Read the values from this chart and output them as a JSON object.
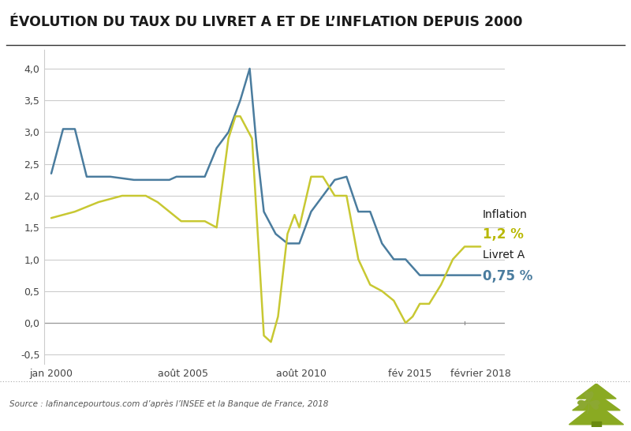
{
  "title": "ÉVOLUTION DU TAUX DU LIVRET A ET DE L’INFLATION DEPUIS 2000",
  "source_text": "Source : lafinancepourtous.com d’après l’INSEE et la Banque de France, 2018",
  "livret_a": {
    "x": [
      2000.0,
      2000.5,
      2001.0,
      2001.5,
      2002.5,
      2003.5,
      2004.5,
      2005.0,
      2005.3,
      2006.0,
      2006.5,
      2007.0,
      2007.5,
      2008.0,
      2008.4,
      2008.7,
      2009.0,
      2009.5,
      2010.0,
      2010.5,
      2011.0,
      2011.5,
      2012.0,
      2012.5,
      2013.0,
      2013.5,
      2014.0,
      2014.5,
      2015.0,
      2015.6,
      2016.0,
      2016.5,
      2017.0,
      2017.5,
      2018.17
    ],
    "y": [
      2.35,
      3.05,
      3.05,
      2.3,
      2.3,
      2.25,
      2.25,
      2.25,
      2.3,
      2.3,
      2.3,
      2.75,
      3.0,
      3.5,
      4.0,
      2.75,
      1.75,
      1.4,
      1.25,
      1.25,
      1.75,
      2.0,
      2.25,
      2.3,
      1.75,
      1.75,
      1.25,
      1.0,
      1.0,
      0.75,
      0.75,
      0.75,
      0.75,
      0.75,
      0.75
    ],
    "color": "#4a7c9e",
    "linewidth": 1.8,
    "label": "Livret A",
    "end_value": "0,75 %"
  },
  "inflation": {
    "x": [
      2000.0,
      2001.0,
      2002.0,
      2003.0,
      2003.5,
      2004.0,
      2004.5,
      2005.0,
      2005.5,
      2006.0,
      2006.5,
      2007.0,
      2007.5,
      2007.8,
      2008.0,
      2008.5,
      2009.0,
      2009.3,
      2009.6,
      2010.0,
      2010.3,
      2010.5,
      2011.0,
      2011.5,
      2012.0,
      2012.5,
      2013.0,
      2013.5,
      2014.0,
      2014.5,
      2015.0,
      2015.3,
      2015.6,
      2016.0,
      2016.5,
      2017.0,
      2017.5,
      2018.17
    ],
    "y": [
      1.65,
      1.75,
      1.9,
      2.0,
      2.0,
      2.0,
      1.9,
      1.75,
      1.6,
      1.6,
      1.6,
      1.5,
      2.9,
      3.25,
      3.25,
      2.9,
      -0.2,
      -0.3,
      0.1,
      1.4,
      1.7,
      1.5,
      2.3,
      2.3,
      2.0,
      2.0,
      1.0,
      0.6,
      0.5,
      0.35,
      0.0,
      0.1,
      0.3,
      0.3,
      0.6,
      1.0,
      1.2,
      1.2
    ],
    "color": "#c8c832",
    "linewidth": 1.8,
    "label": "Inflation",
    "end_value": "1,2 %"
  },
  "xticks": {
    "positions": [
      2000.0,
      2005.58,
      2010.58,
      2015.17,
      2018.17
    ],
    "labels": [
      "jan 2000",
      "août 2005",
      "août 2010",
      "fév 2015",
      "février 2018"
    ]
  },
  "yticks": {
    "values": [
      -0.5,
      0.0,
      0.5,
      1.0,
      1.5,
      2.0,
      2.5,
      3.0,
      3.5,
      4.0
    ],
    "labels": [
      "-0,5",
      "0,0",
      "0,5",
      "1,0",
      "1,5",
      "2,0",
      "2,5",
      "3,0",
      "3,5",
      "4,0"
    ]
  },
  "ylim": [
    -0.65,
    4.3
  ],
  "xlim": [
    1999.7,
    2019.2
  ],
  "background_color": "#ffffff",
  "plot_bg_color": "#ffffff",
  "grid_color": "#cccccc",
  "title_color": "#1a1a1a",
  "tick_color": "#444444",
  "annotation_label_color": "#1a1a1a",
  "annotation_value_livret_color": "#4a7c9e",
  "annotation_value_inflation_color": "#b8b800",
  "title_fontsize": 12.5,
  "tick_fontsize": 9,
  "annotation_label_fontsize": 10,
  "annotation_value_fontsize": 12
}
